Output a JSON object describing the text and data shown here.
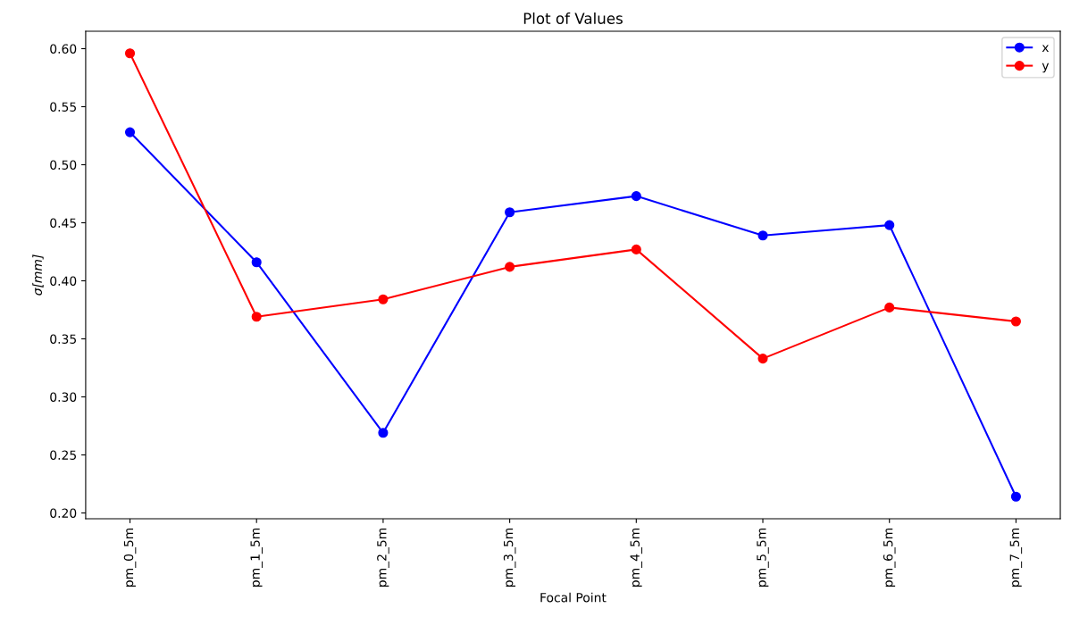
{
  "chart_data": {
    "type": "line",
    "title": "Plot of Values",
    "xlabel": "Focal Point",
    "ylabel": "σ[mm]",
    "categories": [
      "pm_0_5m",
      "pm_1_5m",
      "pm_2_5m",
      "pm_3_5m",
      "pm_4_5m",
      "pm_5_5m",
      "pm_6_5m",
      "pm_7_5m"
    ],
    "series": [
      {
        "name": "x",
        "color": "#0000ff",
        "values": [
          0.528,
          0.416,
          0.269,
          0.459,
          0.473,
          0.439,
          0.448,
          0.214
        ]
      },
      {
        "name": "y",
        "color": "#ff0000",
        "values": [
          0.596,
          0.369,
          0.384,
          0.412,
          0.427,
          0.333,
          0.377,
          0.365
        ]
      }
    ],
    "ylim": [
      0.195,
      0.615
    ],
    "yticks": [
      {
        "value": 0.2,
        "label": "0.20"
      },
      0.25,
      {
        "value": 0.3,
        "label": "0.30"
      },
      0.35,
      {
        "value": 0.4,
        "label": "0.40"
      },
      0.45,
      {
        "value": 0.5,
        "label": "0.50"
      },
      0.55,
      {
        "value": 0.6,
        "label": "0.60"
      }
    ],
    "marker": "circle",
    "line_style": "solid",
    "legend": "top right",
    "grid": false
  }
}
